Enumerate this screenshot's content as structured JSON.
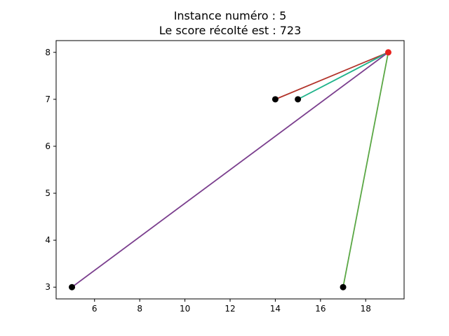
{
  "title_line1": "Instance numéro : 5",
  "title_line2": "Le score récolté est : 723",
  "chart_data": {
    "type": "scatter",
    "title": "Instance numéro : 5\nLe score récolté est : 723",
    "xlabel": "",
    "ylabel": "",
    "xlim": [
      4.3,
      19.7
    ],
    "ylim": [
      2.75,
      8.25
    ],
    "xticks": [
      6,
      8,
      10,
      12,
      14,
      16,
      18
    ],
    "yticks": [
      3,
      4,
      5,
      6,
      7,
      8
    ],
    "grid": false,
    "depot": {
      "x": 19,
      "y": 8,
      "color": "#e8211c"
    },
    "points": [
      {
        "x": 14,
        "y": 7,
        "color": "#000000"
      },
      {
        "x": 15,
        "y": 7,
        "color": "#000000"
      },
      {
        "x": 17,
        "y": 3,
        "color": "#000000"
      },
      {
        "x": 5,
        "y": 3,
        "color": "#000000"
      }
    ],
    "segments": [
      {
        "from": [
          19,
          8
        ],
        "to": [
          14,
          7
        ],
        "color": "#b2332a"
      },
      {
        "from": [
          19,
          8
        ],
        "to": [
          15,
          7
        ],
        "color": "#1fb38a"
      },
      {
        "from": [
          19,
          8
        ],
        "to": [
          17,
          3
        ],
        "color": "#5aa744"
      },
      {
        "from": [
          19,
          8
        ],
        "to": [
          5,
          3
        ],
        "color": "#7b3f8e"
      }
    ]
  }
}
